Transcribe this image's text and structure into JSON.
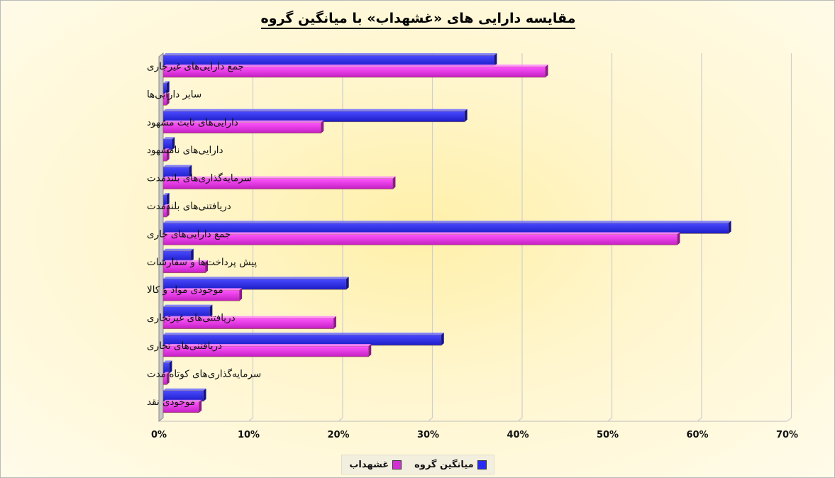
{
  "chart_data": {
    "type": "bar",
    "orientation": "horizontal",
    "title": "مقایسه دارایی های «غشهداب» با میانگین گروه",
    "categories": [
      "جمع دارایی‌های غیرجاری",
      "سایر دارایی‌ها",
      "دارایی‌های ثابت مشهود",
      "دارایی‌های نامشهود",
      "سرمایه‌گذاری‌های بلندمدت",
      "دریافتنی‌های بلندمدت",
      "جمع دارایی‌های جاری",
      "پیش پرداخت‌ها و سفارشات",
      "موجودی مواد و کالا",
      "دریافتنی‌های غیرتجاری",
      "دریافتنی‌های تجاری",
      "سرمایه‌گذاری‌های کوتاه مدت",
      "موجودی نقد"
    ],
    "series": [
      {
        "name": "میانگین گروه",
        "color": "#2a2af0",
        "values": [
          36.9,
          0.4,
          33.6,
          1.0,
          2.9,
          0.4,
          63.0,
          3.1,
          20.4,
          5.2,
          31.0,
          0.7,
          4.5
        ]
      },
      {
        "name": "غشهداب",
        "color": "#d22fd2",
        "values": [
          42.6,
          0.4,
          17.6,
          0.4,
          25.6,
          0.4,
          57.3,
          4.7,
          8.5,
          19.0,
          22.9,
          0.4,
          4.0
        ]
      }
    ],
    "xlim": [
      0,
      70
    ],
    "xticks": [
      "0%",
      "10%",
      "20%",
      "30%",
      "40%",
      "50%",
      "60%",
      "70%"
    ],
    "grid": true,
    "legend_position": "bottom"
  }
}
